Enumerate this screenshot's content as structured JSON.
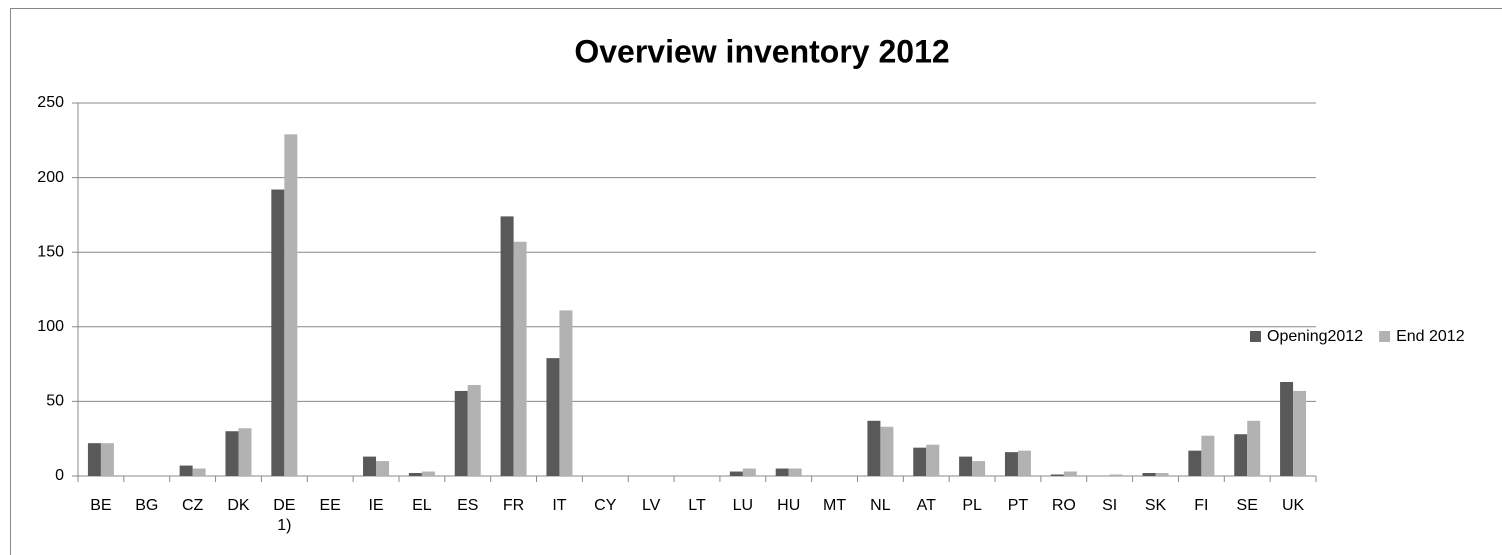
{
  "chart_data": {
    "type": "bar",
    "title": "Overview inventory 2012",
    "categories": [
      "BE",
      "BG",
      "CZ",
      "DK",
      "DE 1)",
      "EE",
      "IE",
      "EL",
      "ES",
      "FR",
      "IT",
      "CY",
      "LV",
      "LT",
      "LU",
      "HU",
      "MT",
      "NL",
      "AT",
      "PL",
      "PT",
      "RO",
      "SI",
      "SK",
      "FI",
      "SE",
      "UK"
    ],
    "series": [
      {
        "name": "Opening2012",
        "color": "#595959",
        "values": [
          22,
          0,
          7,
          30,
          192,
          0,
          13,
          2,
          57,
          174,
          79,
          0,
          0,
          0,
          3,
          5,
          0,
          37,
          19,
          13,
          16,
          1,
          0,
          2,
          17,
          28,
          63
        ]
      },
      {
        "name": "End 2012",
        "color": "#b2b2b2",
        "values": [
          22,
          0,
          5,
          32,
          229,
          0,
          10,
          3,
          61,
          157,
          111,
          0,
          0,
          0,
          5,
          5,
          0,
          33,
          21,
          10,
          17,
          3,
          1,
          2,
          27,
          37,
          57
        ]
      }
    ],
    "ylim": [
      0,
      250
    ],
    "yticks": [
      0,
      50,
      100,
      150,
      200,
      250
    ],
    "grid": true,
    "legend": "right"
  }
}
